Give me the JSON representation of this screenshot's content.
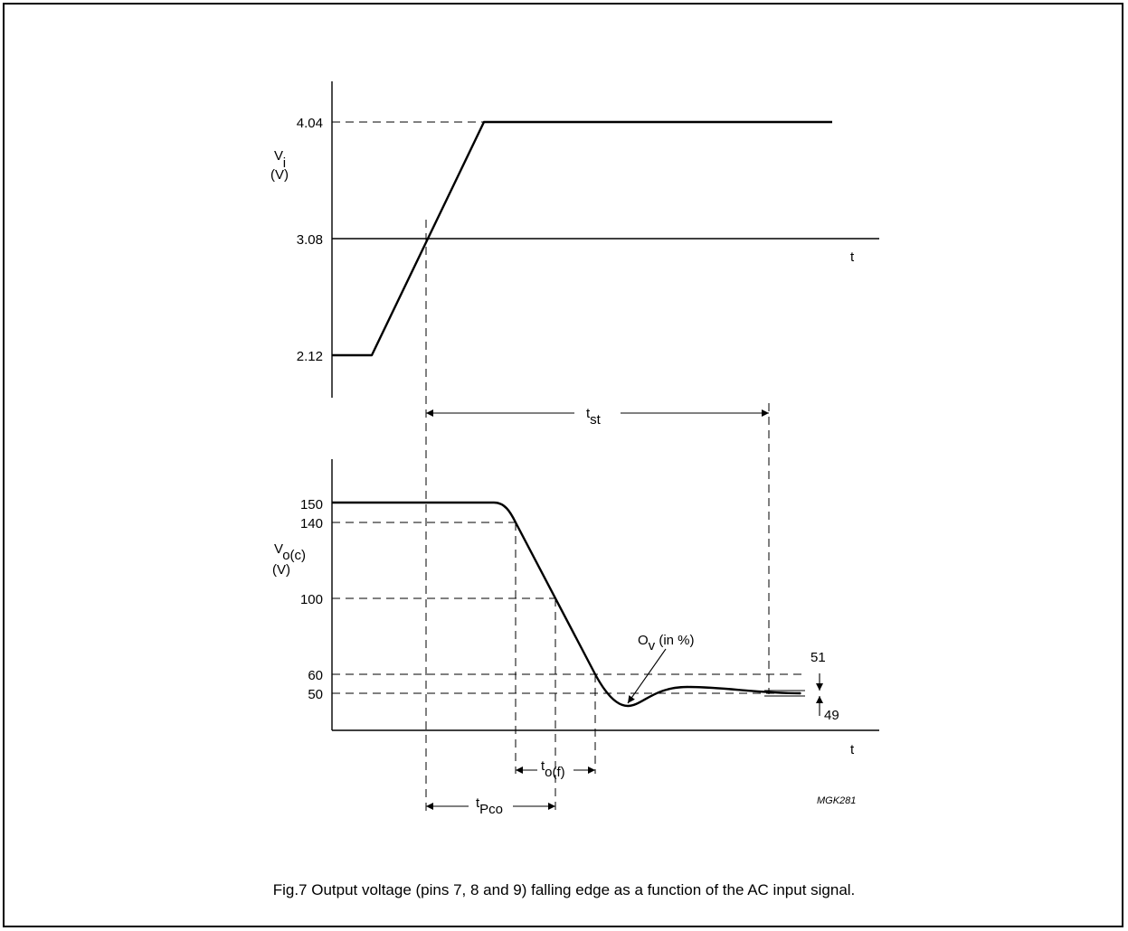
{
  "top_graph": {
    "y_axis_label": "V",
    "y_axis_label_sub": "i",
    "y_axis_unit": "(V)",
    "ticks": [
      "4.04",
      "3.08",
      "2.12"
    ],
    "x_axis_label": "t"
  },
  "bottom_graph": {
    "y_axis_label": "V",
    "y_axis_label_sub": "o(c)",
    "y_axis_unit": "(V)",
    "ticks": [
      "150",
      "140",
      "100",
      "60",
      "50"
    ],
    "x_axis_label": "t",
    "overshoot_label": "O",
    "overshoot_label_sub": "v",
    "overshoot_label_rest": " (in %)",
    "band_upper": "51",
    "band_lower": "49"
  },
  "timing": {
    "t_st": "t",
    "t_st_sub": "st",
    "t_of": "t",
    "t_of_sub": "o(f)",
    "t_pco": "t",
    "t_pco_sub": "Pco"
  },
  "drawing_code": "MGK281",
  "caption": "Fig.7  Output voltage (pins 7, 8 and 9) falling edge as a function of the AC input signal."
}
